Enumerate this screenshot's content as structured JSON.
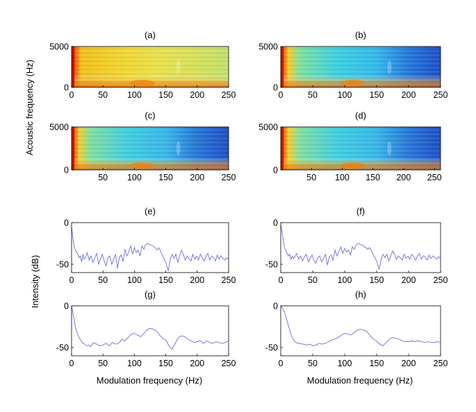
{
  "figure": {
    "ylabel_top": "Acoustic frequency (Hz)",
    "ylabel_bottom": "Intensity (dB)",
    "xlabel_bottom": "Modulation frequency (Hz)"
  },
  "colors": {
    "line": "#6b6bd8",
    "axis": "#000000",
    "spec_hot": "#d03010",
    "spec_warm": "#f0d020",
    "spec_mid": "#40c8e0",
    "spec_cool": "#2060d0"
  },
  "chart_data": [
    {
      "id": "a",
      "type": "heatmap",
      "title": "(a)",
      "xlim": [
        0,
        250
      ],
      "ylim": [
        0,
        5000
      ],
      "xticks": [
        "0",
        "50",
        "100",
        "150",
        "200",
        "250"
      ],
      "yticks": [
        "0",
        "5000"
      ],
      "description_level": "warm"
    },
    {
      "id": "b",
      "type": "heatmap",
      "title": "(b)",
      "xlim": [
        0,
        250
      ],
      "ylim": [
        0,
        5000
      ],
      "xticks": [
        "0",
        "50",
        "100",
        "150",
        "200",
        "250"
      ],
      "yticks": [
        "0",
        "5000"
      ],
      "description_level": "cool"
    },
    {
      "id": "c",
      "type": "heatmap",
      "title": "(c)",
      "xlim": [
        0,
        250
      ],
      "ylim": [
        0,
        5000
      ],
      "xticks": [
        "50",
        "100",
        "150",
        "200",
        "250"
      ],
      "yticks": [
        "0",
        "5000"
      ],
      "description_level": "cool"
    },
    {
      "id": "d",
      "type": "heatmap",
      "title": "(d)",
      "xlim": [
        0,
        260
      ],
      "ylim": [
        0,
        5000
      ],
      "xticks": [
        "50",
        "100",
        "150",
        "200",
        "250"
      ],
      "yticks": [
        "0",
        "5000"
      ],
      "description_level": "cool"
    },
    {
      "id": "e",
      "type": "line",
      "title": "(e)",
      "xlim": [
        0,
        250
      ],
      "ylim": [
        -60,
        0
      ],
      "xticks": [
        "0",
        "50",
        "100",
        "150",
        "200",
        "250"
      ],
      "yticks": [
        "0",
        "-50"
      ],
      "series": [
        {
          "name": "(e)",
          "x": [
            0,
            2,
            4,
            6,
            8,
            10,
            12,
            14,
            16,
            18,
            20,
            22,
            25,
            28,
            31,
            34,
            37,
            40,
            43,
            46,
            49,
            52,
            55,
            58,
            61,
            64,
            67,
            70,
            73,
            76,
            79,
            82,
            85,
            88,
            91,
            94,
            97,
            100,
            103,
            106,
            109,
            112,
            115,
            118,
            121,
            124,
            127,
            130,
            133,
            136,
            139,
            142,
            145,
            148,
            151,
            154,
            157,
            160,
            163,
            166,
            169,
            172,
            175,
            178,
            181,
            184,
            187,
            190,
            193,
            196,
            199,
            202,
            205,
            208,
            211,
            214,
            217,
            220,
            223,
            226,
            229,
            232,
            235,
            238,
            241,
            244,
            247,
            250
          ],
          "y": [
            -5,
            -18,
            -28,
            -33,
            -36,
            -38,
            -42,
            -40,
            -47,
            -38,
            -44,
            -42,
            -36,
            -45,
            -40,
            -48,
            -42,
            -37,
            -50,
            -44,
            -38,
            -46,
            -52,
            -42,
            -40,
            -50,
            -44,
            -38,
            -55,
            -42,
            -39,
            -47,
            -32,
            -40,
            -35,
            -28,
            -38,
            -30,
            -36,
            -33,
            -40,
            -28,
            -32,
            -26,
            -25,
            -26,
            -27,
            -28,
            -30,
            -33,
            -30,
            -35,
            -40,
            -44,
            -50,
            -58,
            -45,
            -38,
            -43,
            -38,
            -48,
            -40,
            -33,
            -38,
            -45,
            -40,
            -43,
            -46,
            -38,
            -44,
            -40,
            -45,
            -38,
            -42,
            -46,
            -40,
            -37,
            -45,
            -40,
            -42,
            -46,
            -39,
            -44,
            -40,
            -43,
            -45,
            -42,
            -44
          ]
        }
      ]
    },
    {
      "id": "f",
      "type": "line",
      "title": "(f)",
      "xlim": [
        0,
        250
      ],
      "ylim": [
        -60,
        0
      ],
      "xticks": [
        "0",
        "50",
        "100",
        "150",
        "200",
        "250"
      ],
      "yticks": [
        "0",
        "-50"
      ],
      "series": [
        {
          "name": "(f)",
          "x": [
            0,
            2,
            4,
            6,
            8,
            10,
            12,
            14,
            16,
            18,
            20,
            22,
            25,
            28,
            31,
            34,
            37,
            40,
            43,
            46,
            49,
            52,
            55,
            58,
            61,
            64,
            67,
            70,
            73,
            76,
            79,
            82,
            85,
            88,
            91,
            94,
            97,
            100,
            103,
            106,
            109,
            112,
            115,
            118,
            121,
            124,
            127,
            130,
            133,
            136,
            139,
            142,
            145,
            148,
            151,
            154,
            157,
            160,
            163,
            166,
            169,
            172,
            175,
            178,
            181,
            184,
            187,
            190,
            193,
            196,
            199,
            202,
            205,
            208,
            211,
            214,
            217,
            220,
            223,
            226,
            229,
            232,
            235,
            238,
            241,
            244,
            247,
            250
          ],
          "y": [
            -2,
            -10,
            -22,
            -30,
            -34,
            -37,
            -40,
            -38,
            -44,
            -40,
            -43,
            -41,
            -37,
            -44,
            -40,
            -46,
            -41,
            -38,
            -47,
            -43,
            -39,
            -45,
            -49,
            -42,
            -40,
            -47,
            -43,
            -38,
            -51,
            -41,
            -39,
            -45,
            -33,
            -40,
            -35,
            -29,
            -37,
            -31,
            -35,
            -33,
            -39,
            -29,
            -32,
            -27,
            -25,
            -26,
            -27,
            -28,
            -30,
            -32,
            -30,
            -34,
            -39,
            -43,
            -48,
            -56,
            -44,
            -38,
            -42,
            -38,
            -46,
            -40,
            -34,
            -38,
            -44,
            -40,
            -42,
            -45,
            -38,
            -43,
            -40,
            -44,
            -38,
            -41,
            -45,
            -40,
            -37,
            -44,
            -40,
            -41,
            -45,
            -39,
            -43,
            -40,
            -42,
            -44,
            -41,
            -43
          ]
        }
      ]
    },
    {
      "id": "g",
      "type": "line",
      "title": "(g)",
      "xlim": [
        0,
        250
      ],
      "ylim": [
        -60,
        0
      ],
      "xticks": [
        "0",
        "50",
        "100",
        "150",
        "200",
        "250"
      ],
      "yticks": [
        "0",
        "-50"
      ],
      "series": [
        {
          "name": "(g)",
          "x": [
            0,
            3,
            6,
            9,
            12,
            15,
            18,
            21,
            24,
            27,
            30,
            35,
            40,
            45,
            50,
            55,
            60,
            65,
            70,
            75,
            80,
            85,
            90,
            95,
            100,
            105,
            110,
            115,
            120,
            125,
            130,
            135,
            140,
            145,
            150,
            155,
            160,
            165,
            170,
            175,
            180,
            185,
            190,
            195,
            200,
            205,
            210,
            215,
            220,
            225,
            230,
            235,
            240,
            245,
            250
          ],
          "y": [
            0,
            -12,
            -25,
            -33,
            -38,
            -42,
            -45,
            -46,
            -48,
            -47,
            -49,
            -44,
            -46,
            -48,
            -47,
            -45,
            -48,
            -44,
            -46,
            -45,
            -40,
            -42,
            -38,
            -34,
            -33,
            -35,
            -37,
            -33,
            -29,
            -27,
            -28,
            -30,
            -35,
            -39,
            -41,
            -48,
            -52,
            -45,
            -38,
            -36,
            -37,
            -40,
            -42,
            -44,
            -43,
            -42,
            -45,
            -42,
            -44,
            -45,
            -43,
            -44,
            -45,
            -44,
            -42
          ]
        }
      ]
    },
    {
      "id": "h",
      "type": "line",
      "title": "(h)",
      "xlim": [
        0,
        250
      ],
      "ylim": [
        -60,
        0
      ],
      "xticks": [
        "0",
        "50",
        "100",
        "150",
        "200",
        "250"
      ],
      "yticks": [
        "0",
        "-50"
      ],
      "series": [
        {
          "name": "(h)",
          "x": [
            0,
            3,
            6,
            9,
            12,
            15,
            18,
            21,
            24,
            27,
            30,
            35,
            40,
            45,
            50,
            55,
            60,
            65,
            70,
            75,
            80,
            85,
            90,
            95,
            100,
            105,
            110,
            115,
            120,
            125,
            130,
            135,
            140,
            145,
            150,
            155,
            160,
            165,
            170,
            175,
            180,
            185,
            190,
            195,
            200,
            205,
            210,
            215,
            220,
            225,
            230,
            235,
            240,
            245,
            250
          ],
          "y": [
            0,
            -3,
            -8,
            -15,
            -24,
            -32,
            -38,
            -42,
            -44,
            -45,
            -45,
            -46,
            -47,
            -46,
            -48,
            -47,
            -45,
            -46,
            -45,
            -43,
            -41,
            -40,
            -38,
            -35,
            -33,
            -34,
            -35,
            -32,
            -29,
            -28,
            -29,
            -31,
            -36,
            -40,
            -42,
            -46,
            -48,
            -44,
            -40,
            -38,
            -39,
            -40,
            -42,
            -43,
            -43,
            -42,
            -43,
            -42,
            -43,
            -44,
            -43,
            -44,
            -44,
            -43,
            -44
          ]
        }
      ]
    }
  ]
}
